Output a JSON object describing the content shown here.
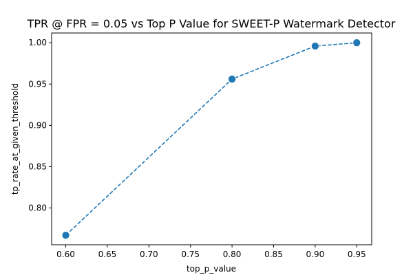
{
  "chart_data": {
    "type": "line",
    "title": "TPR @ FPR = 0.05 vs Top P Value for SWEET-P Watermark Detector",
    "xlabel": "top_p_value",
    "ylabel": "tp_rate_at_given_threshold",
    "xlim": [
      0.583,
      0.968
    ],
    "ylim": [
      0.7555,
      1.0118
    ],
    "x_ticks": [
      0.6,
      0.65,
      0.7,
      0.75,
      0.8,
      0.85,
      0.9,
      0.95
    ],
    "x_tick_labels": [
      "0.60",
      "0.65",
      "0.70",
      "0.75",
      "0.80",
      "0.85",
      "0.90",
      "0.95"
    ],
    "y_ticks": [
      0.8,
      0.85,
      0.9,
      0.95,
      1.0
    ],
    "y_tick_labels": [
      "0.80",
      "0.85",
      "0.90",
      "0.95",
      "1.00"
    ],
    "grid": false,
    "line_style": "dashed",
    "marker": "circle",
    "color": "#1f77b4",
    "series": [
      {
        "x": [
          0.6,
          0.8,
          0.9,
          0.95
        ],
        "y": [
          0.767,
          0.956,
          0.996,
          1.0
        ]
      }
    ]
  }
}
